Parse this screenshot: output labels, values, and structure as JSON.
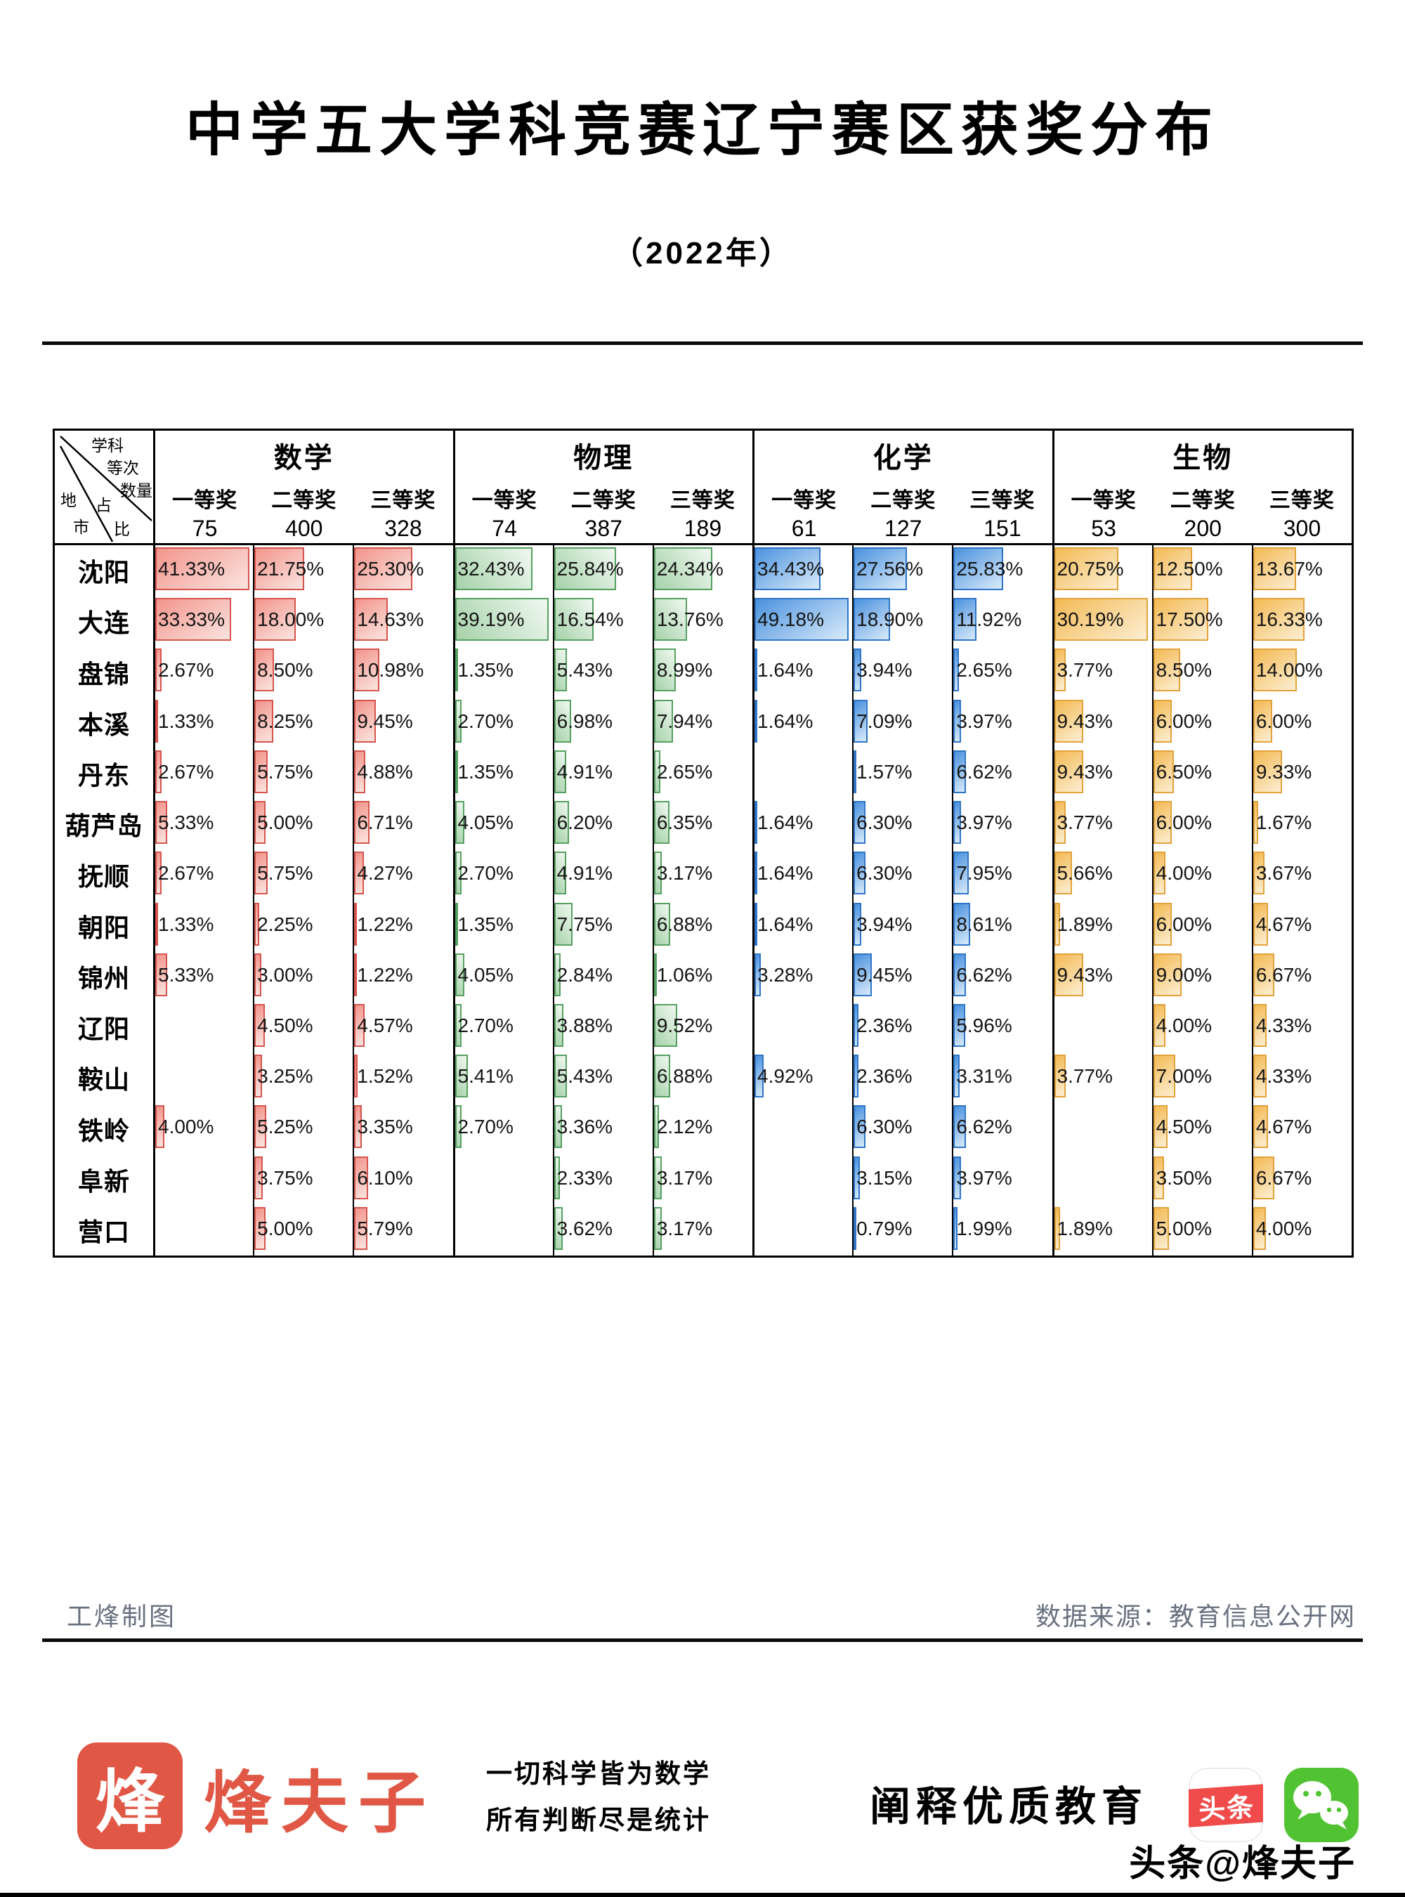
{
  "title": "中学五大学科竞赛辽宁赛区获奖分布",
  "subtitle": "（2022年）",
  "corner": {
    "subject": "学科",
    "rank": "等次",
    "count": "数量",
    "region": "地",
    "prop": "占",
    "city": "市",
    "ratio": "比"
  },
  "chart_data": {
    "type": "table",
    "title": "中学五大学科竞赛辽宁赛区获奖分布",
    "year": "2022",
    "groups": [
      {
        "subject": "数学",
        "prizes": [
          "一等奖",
          "二等奖",
          "三等奖"
        ],
        "totals": [
          75,
          400,
          328
        ],
        "bar_border": "#d6544e",
        "bar_from": "#f2958b",
        "bar_to": "#fbe4e0"
      },
      {
        "subject": "物理",
        "prizes": [
          "一等奖",
          "二等奖",
          "三等奖"
        ],
        "totals": [
          74,
          387,
          189
        ],
        "bar_border": "#55a060",
        "bar_from": "#a6d2aa",
        "bar_to": "#f0f8f0"
      },
      {
        "subject": "化学",
        "prizes": [
          "一等奖",
          "二等奖",
          "三等奖"
        ],
        "totals": [
          61,
          127,
          151
        ],
        "bar_border": "#2e75c8",
        "bar_from": "#4b92de",
        "bar_to": "#d8eafa"
      },
      {
        "subject": "生物",
        "prizes": [
          "一等奖",
          "二等奖",
          "三等奖"
        ],
        "totals": [
          53,
          200,
          300
        ],
        "bar_border": "#e3a23a",
        "bar_from": "#f3ba55",
        "bar_to": "#fceed2"
      }
    ],
    "rows": [
      {
        "city": "沈阳",
        "values": [
          [
            "41.33%",
            "21.75%",
            "25.30%"
          ],
          [
            "32.43%",
            "25.84%",
            "24.34%"
          ],
          [
            "34.43%",
            "27.56%",
            "25.83%"
          ],
          [
            "20.75%",
            "12.50%",
            "13.67%"
          ]
        ]
      },
      {
        "city": "大连",
        "values": [
          [
            "33.33%",
            "18.00%",
            "14.63%"
          ],
          [
            "39.19%",
            "16.54%",
            "13.76%"
          ],
          [
            "49.18%",
            "18.90%",
            "11.92%"
          ],
          [
            "30.19%",
            "17.50%",
            "16.33%"
          ]
        ]
      },
      {
        "city": "盘锦",
        "values": [
          [
            "2.67%",
            "8.50%",
            "10.98%"
          ],
          [
            "1.35%",
            "5.43%",
            "8.99%"
          ],
          [
            "1.64%",
            "3.94%",
            "2.65%"
          ],
          [
            "3.77%",
            "8.50%",
            "14.00%"
          ]
        ]
      },
      {
        "city": "本溪",
        "values": [
          [
            "1.33%",
            "8.25%",
            "9.45%"
          ],
          [
            "2.70%",
            "6.98%",
            "7.94%"
          ],
          [
            "1.64%",
            "7.09%",
            "3.97%"
          ],
          [
            "9.43%",
            "6.00%",
            "6.00%"
          ]
        ]
      },
      {
        "city": "丹东",
        "values": [
          [
            "2.67%",
            "5.75%",
            "4.88%"
          ],
          [
            "1.35%",
            "4.91%",
            "2.65%"
          ],
          [
            "",
            "1.57%",
            "6.62%"
          ],
          [
            "9.43%",
            "6.50%",
            "9.33%"
          ]
        ]
      },
      {
        "city": "葫芦岛",
        "values": [
          [
            "5.33%",
            "5.00%",
            "6.71%"
          ],
          [
            "4.05%",
            "6.20%",
            "6.35%"
          ],
          [
            "1.64%",
            "6.30%",
            "3.97%"
          ],
          [
            "3.77%",
            "6.00%",
            "1.67%"
          ]
        ]
      },
      {
        "city": "抚顺",
        "values": [
          [
            "2.67%",
            "5.75%",
            "4.27%"
          ],
          [
            "2.70%",
            "4.91%",
            "3.17%"
          ],
          [
            "1.64%",
            "6.30%",
            "7.95%"
          ],
          [
            "5.66%",
            "4.00%",
            "3.67%"
          ]
        ]
      },
      {
        "city": "朝阳",
        "values": [
          [
            "1.33%",
            "2.25%",
            "1.22%"
          ],
          [
            "1.35%",
            "7.75%",
            "6.88%"
          ],
          [
            "1.64%",
            "3.94%",
            "8.61%"
          ],
          [
            "1.89%",
            "6.00%",
            "4.67%"
          ]
        ]
      },
      {
        "city": "锦州",
        "values": [
          [
            "5.33%",
            "3.00%",
            "1.22%"
          ],
          [
            "4.05%",
            "2.84%",
            "1.06%"
          ],
          [
            "3.28%",
            "9.45%",
            "6.62%"
          ],
          [
            "9.43%",
            "9.00%",
            "6.67%"
          ]
        ]
      },
      {
        "city": "辽阳",
        "values": [
          [
            "",
            "4.50%",
            "4.57%"
          ],
          [
            "2.70%",
            "3.88%",
            "9.52%"
          ],
          [
            "",
            "2.36%",
            "5.96%"
          ],
          [
            "",
            "4.00%",
            "4.33%"
          ]
        ]
      },
      {
        "city": "鞍山",
        "values": [
          [
            "",
            "3.25%",
            "1.52%"
          ],
          [
            "5.41%",
            "5.43%",
            "6.88%"
          ],
          [
            "4.92%",
            "2.36%",
            "3.31%"
          ],
          [
            "3.77%",
            "7.00%",
            "4.33%"
          ]
        ]
      },
      {
        "city": "铁岭",
        "values": [
          [
            "4.00%",
            "5.25%",
            "3.35%"
          ],
          [
            "2.70%",
            "3.36%",
            "2.12%"
          ],
          [
            "",
            "6.30%",
            "6.62%"
          ],
          [
            "",
            "4.50%",
            "4.67%"
          ]
        ]
      },
      {
        "city": "阜新",
        "values": [
          [
            "",
            "3.75%",
            "6.10%"
          ],
          [
            "",
            "2.33%",
            "3.17%"
          ],
          [
            "",
            "3.15%",
            "3.97%"
          ],
          [
            "",
            "3.50%",
            "6.67%"
          ]
        ]
      },
      {
        "city": "营口",
        "values": [
          [
            "",
            "5.00%",
            "5.79%"
          ],
          [
            "",
            "3.62%",
            "3.17%"
          ],
          [
            "",
            "0.79%",
            "1.99%"
          ],
          [
            "1.89%",
            "5.00%",
            "4.00%"
          ]
        ]
      }
    ]
  },
  "footer": {
    "credit": "工烽制图",
    "source": "数据来源：教育信息公开网"
  },
  "branding": {
    "logo_char": "烽",
    "name": "烽夫子",
    "slogan_line1": "一切科学皆为数学",
    "slogan_line2": "所有判断尽是统计",
    "tagline": "阐释优质教育",
    "toutiao_label": "头条",
    "handle": "头条@烽夫子"
  }
}
